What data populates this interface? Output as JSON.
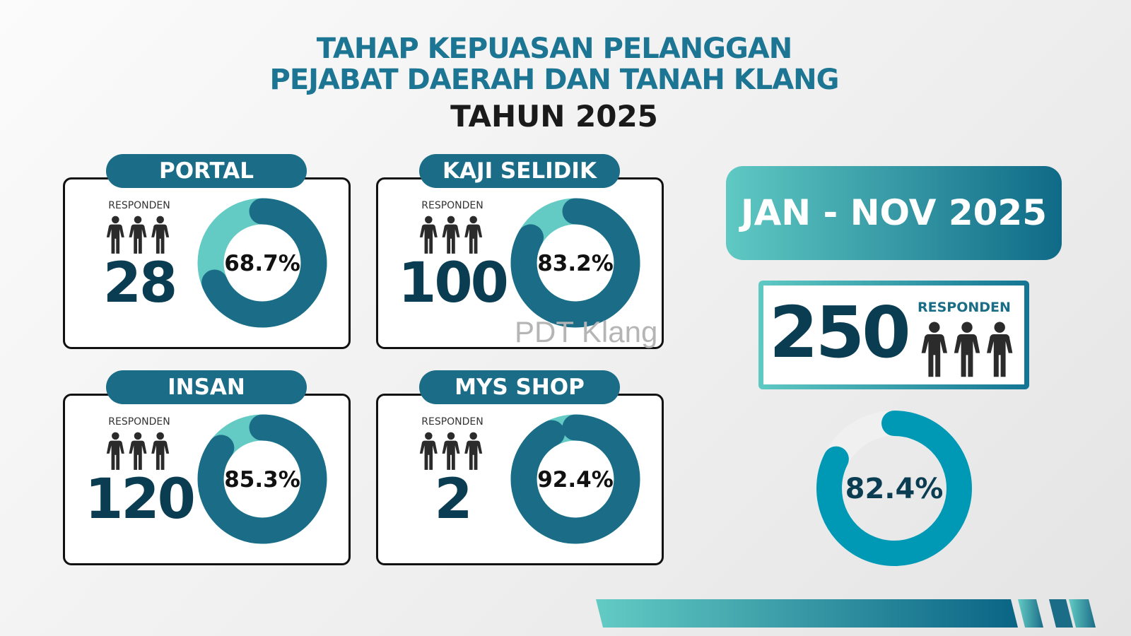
{
  "title": {
    "line1": "TAHAP KEPUASAN PELANGGAN",
    "line2": "PEJABAT DAERAH DAN TANAH KLANG",
    "line3": "TAHUN 2025"
  },
  "respondent_label": "RESPONDEN",
  "watermark": "PDT Klang",
  "colors": {
    "dark_arc": "#1b6c87",
    "light_arc": "#63cbc4",
    "total_arc": "#0099b5",
    "total_track": "#f0f0f0"
  },
  "chart_data": [
    {
      "type": "pie",
      "name": "PORTAL",
      "respondents": "28",
      "values": [
        68.7,
        31.3
      ],
      "label": "68.7%"
    },
    {
      "type": "pie",
      "name": "KAJI SELIDIK",
      "respondents": "100",
      "values": [
        83.2,
        16.8
      ],
      "label": "83.2%"
    },
    {
      "type": "pie",
      "name": "INSAN",
      "respondents": "120",
      "values": [
        85.3,
        14.7
      ],
      "label": "85.3%"
    },
    {
      "type": "pie",
      "name": "MYS SHOP",
      "respondents": "2",
      "values": [
        92.4,
        7.6
      ],
      "label": "92.4%"
    },
    {
      "type": "pie",
      "values": [
        82.4,
        17.6
      ],
      "label": "82.4%"
    }
  ],
  "summary": {
    "period": "JAN - NOV 2025",
    "total_respondents": "250",
    "respondent_label": "RESPONDEN"
  }
}
